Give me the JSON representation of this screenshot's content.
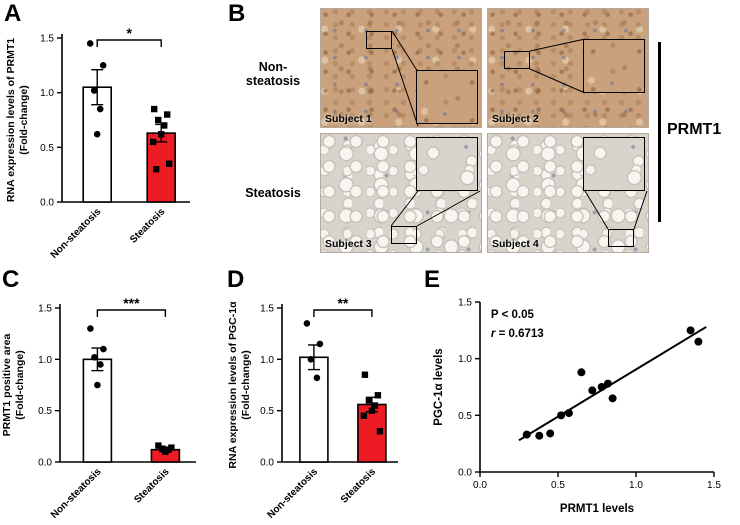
{
  "panels": {
    "a": "A",
    "b": "B",
    "c": "C",
    "d": "D",
    "e": "E"
  },
  "panel_b": {
    "row1_line1": "Non-",
    "row1_line2": "steatosis",
    "row2": "Steatosis",
    "subjects": [
      "Subject 1",
      "Subject 2",
      "Subject 3",
      "Subject 4"
    ],
    "side_label": "PRMT1"
  },
  "colors": {
    "steatosis_bar": "#ed1c24",
    "non_steatosis_bar": "#ffffff",
    "points": "#000000"
  },
  "chart_data": [
    {
      "panel": "A",
      "type": "bar",
      "ylabel": "RNA expression levels of PRMT1",
      "ylabel2": "(Fold-change)",
      "categories": [
        "Non-steatosis",
        "Steatosis"
      ],
      "values": [
        1.05,
        0.63
      ],
      "errors": [
        0.16,
        0.08
      ],
      "points": [
        [
          1.45,
          1.25,
          1.02,
          0.85,
          0.62
        ],
        [
          0.85,
          0.8,
          0.75,
          0.7,
          0.62,
          0.55,
          0.35,
          0.3
        ]
      ],
      "point_shapes": [
        "circle",
        "square"
      ],
      "significance": "*",
      "ylim": [
        0,
        1.5
      ],
      "yticks": [
        0,
        0.5,
        1,
        1.5
      ],
      "bar_colors": [
        "#ffffff",
        "#ed1c24"
      ]
    },
    {
      "panel": "C",
      "type": "bar",
      "ylabel": "PRMT1 positive area",
      "ylabel2": "(Fold-change)",
      "categories": [
        "Non-steatosis",
        "Steatosis"
      ],
      "values": [
        1.0,
        0.12
      ],
      "errors": [
        0.11,
        0.02
      ],
      "points": [
        [
          1.3,
          1.1,
          1.02,
          0.95,
          0.75
        ],
        [
          0.16,
          0.14,
          0.13,
          0.12,
          0.1
        ]
      ],
      "point_shapes": [
        "circle",
        "square"
      ],
      "significance": "***",
      "ylim": [
        0,
        1.5
      ],
      "yticks": [
        0,
        0.5,
        1,
        1.5
      ],
      "bar_colors": [
        "#ffffff",
        "#ed1c24"
      ]
    },
    {
      "panel": "D",
      "type": "bar",
      "ylabel": "RNA expression levels of PGC-1α",
      "ylabel2": "(Fold-change)",
      "categories": [
        "Non-steatosis",
        "Steatosis"
      ],
      "values": [
        1.02,
        0.56
      ],
      "errors": [
        0.12,
        0.07
      ],
      "points": [
        [
          1.35,
          1.15,
          1.0,
          0.82
        ],
        [
          0.85,
          0.65,
          0.6,
          0.55,
          0.5,
          0.45,
          0.3
        ]
      ],
      "point_shapes": [
        "circle",
        "square"
      ],
      "significance": "**",
      "ylim": [
        0,
        1.5
      ],
      "yticks": [
        0,
        0.5,
        1,
        1.5
      ],
      "bar_colors": [
        "#ffffff",
        "#ed1c24"
      ]
    },
    {
      "panel": "E",
      "type": "scatter",
      "xlabel": "PRMT1 levels",
      "ylabel": "PGC-1α levels",
      "xlim": [
        0,
        1.5
      ],
      "ylim": [
        0,
        1.5
      ],
      "xticks": [
        0,
        0.5,
        1,
        1.5
      ],
      "yticks": [
        0,
        0.5,
        1,
        1.5
      ],
      "points": [
        [
          0.3,
          0.33
        ],
        [
          0.38,
          0.32
        ],
        [
          0.45,
          0.34
        ],
        [
          0.52,
          0.5
        ],
        [
          0.57,
          0.52
        ],
        [
          0.65,
          0.88
        ],
        [
          0.72,
          0.72
        ],
        [
          0.78,
          0.75
        ],
        [
          0.82,
          0.78
        ],
        [
          0.85,
          0.65
        ],
        [
          1.35,
          1.25
        ],
        [
          1.4,
          1.15
        ]
      ],
      "fit_line": {
        "x1": 0.25,
        "y1": 0.28,
        "x2": 1.45,
        "y2": 1.28
      },
      "annotations": {
        "p_text": "P < 0.05",
        "r_italic": "r",
        "r_rest": " = 0.6713"
      }
    }
  ]
}
